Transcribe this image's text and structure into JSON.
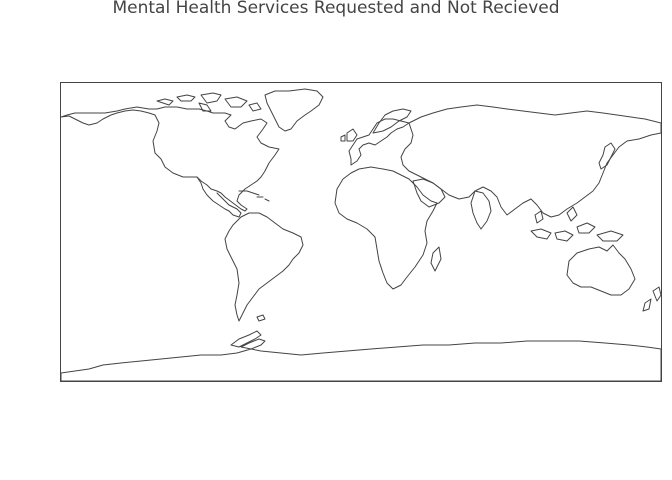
{
  "map": {
    "title": "Mental Health Services Requested and Not Recieved",
    "projection": "equirectangular",
    "coastline_color": "#444444",
    "frame_color": "#444444",
    "background_color": "#ffffff"
  }
}
